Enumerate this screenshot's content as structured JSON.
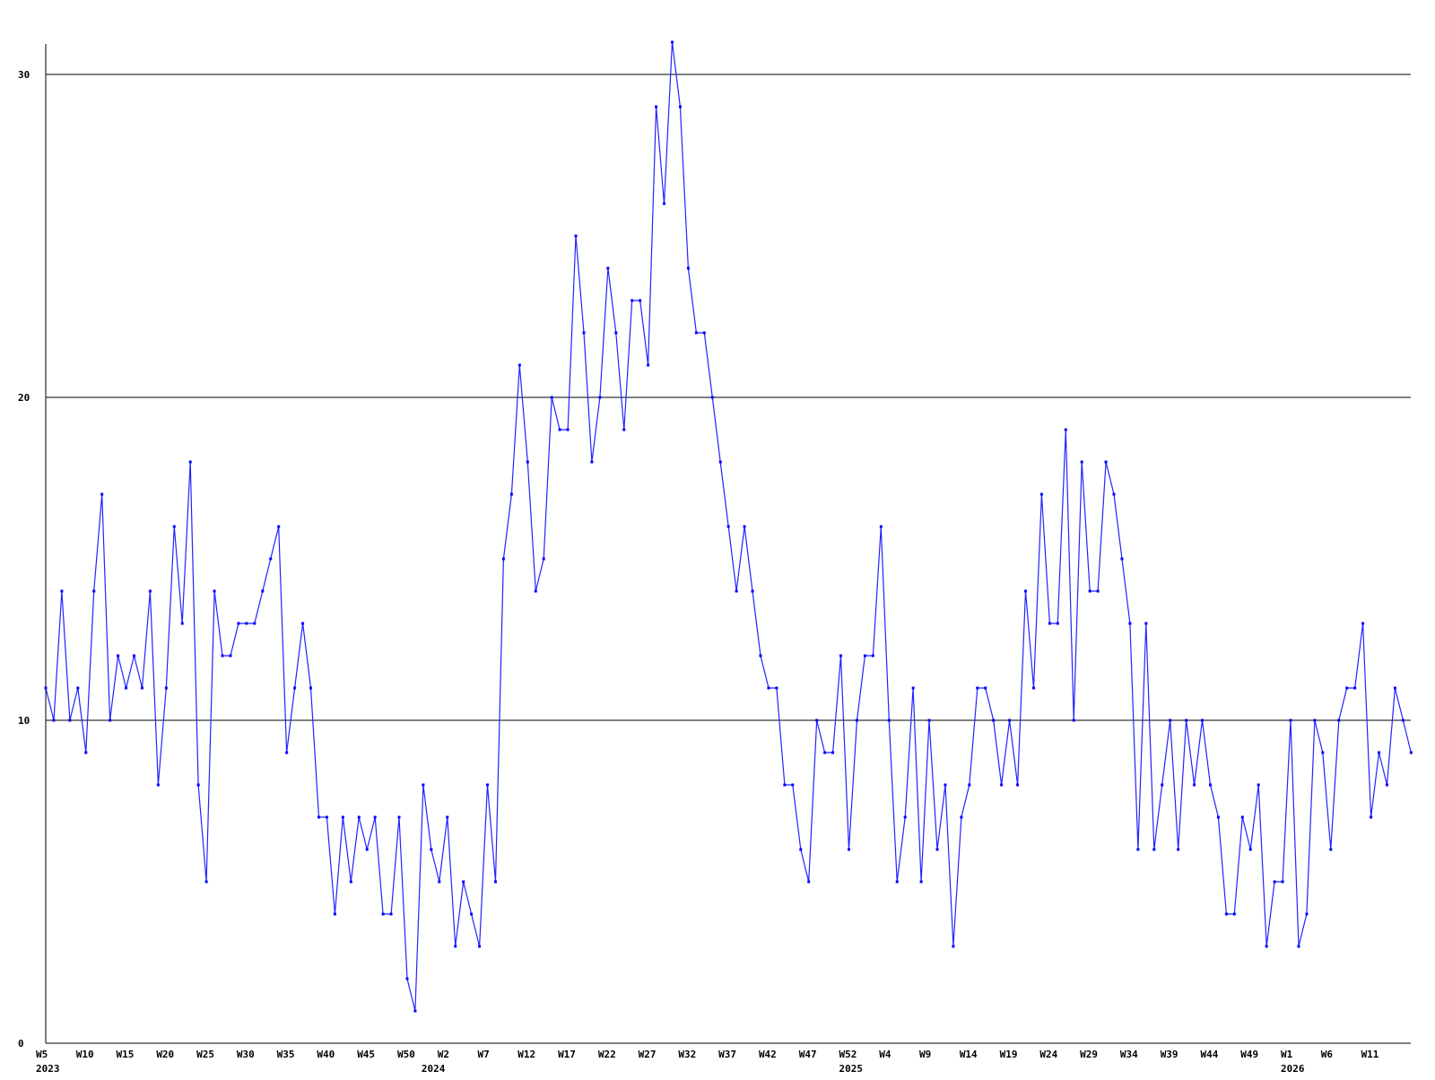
{
  "chart_data": {
    "type": "line",
    "title": "",
    "xlabel": "",
    "ylabel": "",
    "ylim": [
      0,
      31
    ],
    "y_ticks": [
      0,
      10,
      20,
      30
    ],
    "grid": "horizontal",
    "legend": "none",
    "colors": {
      "line": "#2323ff",
      "marker": "#0000ff",
      "grid": "#000000",
      "axis": "#000000",
      "text": "#000000"
    },
    "x_tick_labels": [
      "W5",
      "W10",
      "W15",
      "W20",
      "W25",
      "W30",
      "W35",
      "W40",
      "W45",
      "W50",
      "W2",
      "W7",
      "W12",
      "W17",
      "W22",
      "W27",
      "W32",
      "W37",
      "W42",
      "W47",
      "W52",
      "W4",
      "W9",
      "W14",
      "W19",
      "W24",
      "W29",
      "W34",
      "W39",
      "W44",
      "W49",
      "W1",
      "W6",
      "W11"
    ],
    "x_tick_indices": [
      0,
      5,
      10,
      15,
      20,
      25,
      30,
      35,
      40,
      45,
      50,
      55,
      60,
      65,
      70,
      75,
      80,
      85,
      90,
      95,
      100,
      105,
      110,
      115,
      120,
      125,
      130,
      135,
      140,
      145,
      150,
      155,
      160,
      165
    ],
    "year_labels": [
      "2023",
      "2024",
      "2025",
      "2026"
    ],
    "year_indices": [
      0,
      48,
      100,
      155
    ],
    "series": [
      {
        "values": [
          11,
          10,
          14,
          10,
          11,
          9,
          14,
          17,
          10,
          12,
          11,
          12,
          11,
          14,
          8,
          11,
          16,
          13,
          18,
          8,
          5,
          14,
          12,
          12,
          13,
          13,
          13,
          14,
          15,
          16,
          9,
          11,
          13,
          11,
          7,
          7,
          4,
          7,
          5,
          7,
          6,
          7,
          4,
          4,
          7,
          2,
          1,
          8,
          6,
          5,
          7,
          3,
          5,
          4,
          3,
          8,
          5,
          15,
          17,
          21,
          18,
          14,
          15,
          20,
          19,
          19,
          25,
          22,
          18,
          20,
          24,
          22,
          19,
          23,
          23,
          21,
          29,
          26,
          31,
          29,
          24,
          22,
          22,
          20,
          18,
          16,
          14,
          16,
          14,
          12,
          11,
          11,
          8,
          8,
          6,
          5,
          10,
          9,
          9,
          12,
          6,
          10,
          12,
          12,
          16,
          10,
          5,
          7,
          11,
          5,
          10,
          6,
          8,
          3,
          7,
          8,
          11,
          11,
          10,
          8,
          10,
          8,
          14,
          11,
          17,
          13,
          13,
          19,
          10,
          18,
          14,
          14,
          18,
          17,
          15,
          13,
          6,
          13,
          6,
          8,
          10,
          6,
          10,
          8,
          10,
          8,
          7,
          4,
          4,
          7,
          6,
          8,
          3,
          5,
          5,
          10,
          3,
          4,
          10,
          9,
          6,
          10,
          11,
          11,
          13,
          7,
          9,
          8,
          11,
          10,
          9
        ]
      }
    ]
  }
}
